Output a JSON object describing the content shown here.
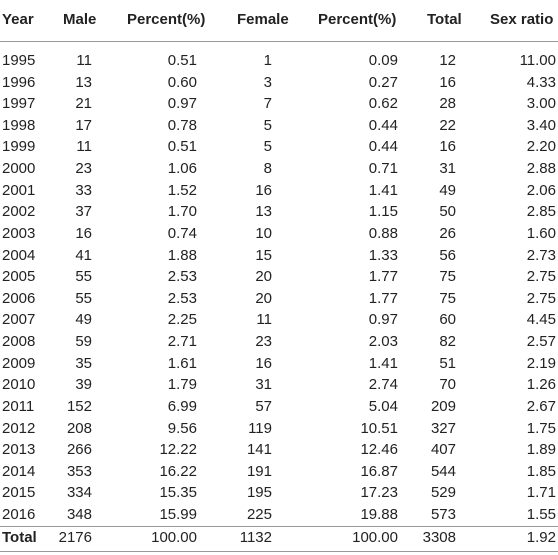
{
  "table": {
    "header": [
      "Year",
      "Male",
      "Percent(%)",
      "Female",
      "Percent(%)",
      "Total",
      "Sex ratio"
    ],
    "rows": [
      [
        "1995",
        "11",
        "0.51",
        "1",
        "0.09",
        "12",
        "11.00"
      ],
      [
        "1996",
        "13",
        "0.60",
        "3",
        "0.27",
        "16",
        "4.33"
      ],
      [
        "1997",
        "21",
        "0.97",
        "7",
        "0.62",
        "28",
        "3.00"
      ],
      [
        "1998",
        "17",
        "0.78",
        "5",
        "0.44",
        "22",
        "3.40"
      ],
      [
        "1999",
        "11",
        "0.51",
        "5",
        "0.44",
        "16",
        "2.20"
      ],
      [
        "2000",
        "23",
        "1.06",
        "8",
        "0.71",
        "31",
        "2.88"
      ],
      [
        "2001",
        "33",
        "1.52",
        "16",
        "1.41",
        "49",
        "2.06"
      ],
      [
        "2002",
        "37",
        "1.70",
        "13",
        "1.15",
        "50",
        "2.85"
      ],
      [
        "2003",
        "16",
        "0.74",
        "10",
        "0.88",
        "26",
        "1.60"
      ],
      [
        "2004",
        "41",
        "1.88",
        "15",
        "1.33",
        "56",
        "2.73"
      ],
      [
        "2005",
        "55",
        "2.53",
        "20",
        "1.77",
        "75",
        "2.75"
      ],
      [
        "2006",
        "55",
        "2.53",
        "20",
        "1.77",
        "75",
        "2.75"
      ],
      [
        "2007",
        "49",
        "2.25",
        "11",
        "0.97",
        "60",
        "4.45"
      ],
      [
        "2008",
        "59",
        "2.71",
        "23",
        "2.03",
        "82",
        "2.57"
      ],
      [
        "2009",
        "35",
        "1.61",
        "16",
        "1.41",
        "51",
        "2.19"
      ],
      [
        "2010",
        "39",
        "1.79",
        "31",
        "2.74",
        "70",
        "1.26"
      ],
      [
        "2011",
        "152",
        "6.99",
        "57",
        "5.04",
        "209",
        "2.67"
      ],
      [
        "2012",
        "208",
        "9.56",
        "119",
        "10.51",
        "327",
        "1.75"
      ],
      [
        "2013",
        "266",
        "12.22",
        "141",
        "12.46",
        "407",
        "1.89"
      ],
      [
        "2014",
        "353",
        "16.22",
        "191",
        "16.87",
        "544",
        "1.85"
      ],
      [
        "2015",
        "334",
        "15.35",
        "195",
        "17.23",
        "529",
        "1.71"
      ],
      [
        "2016",
        "348",
        "15.99",
        "225",
        "19.88",
        "573",
        "1.55"
      ]
    ],
    "total": [
      "Total",
      "2176",
      "100.00",
      "1132",
      "100.00",
      "3308",
      "1.92"
    ]
  }
}
